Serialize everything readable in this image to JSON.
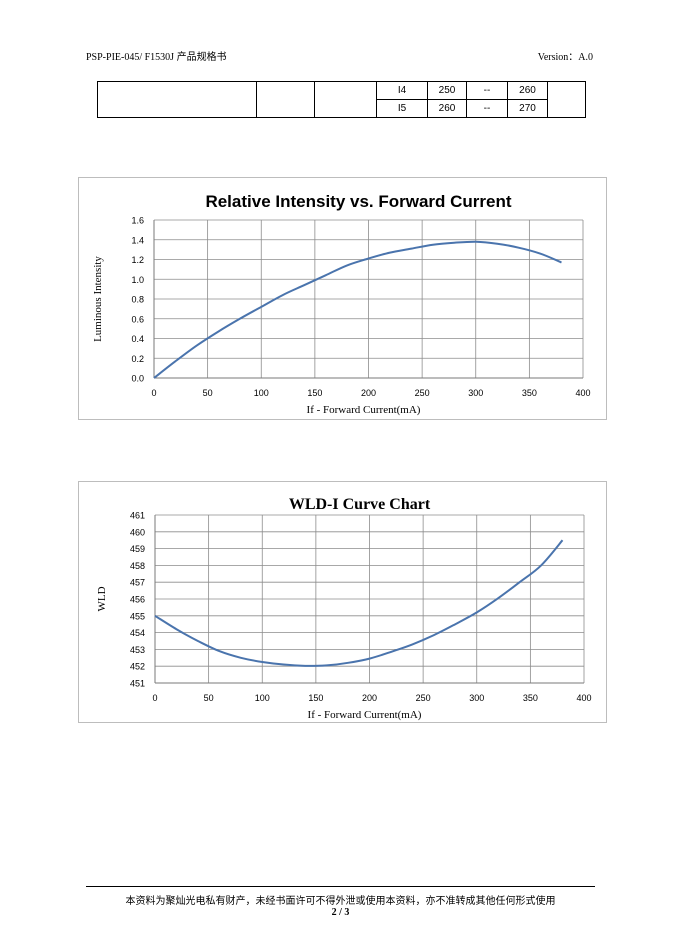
{
  "header": {
    "left": "PSP-PIE-045/ F1530J 产品规格书",
    "right": "Version：A.0"
  },
  "spec_table": {
    "rows": [
      {
        "code": "I4",
        "min": "250",
        "typ": "--",
        "max": "260"
      },
      {
        "code": "I5",
        "min": "260",
        "typ": "--",
        "max": "270"
      }
    ]
  },
  "chart_data": [
    {
      "type": "line",
      "title": "Relative Intensity vs. Forward Current",
      "xlabel": "If - Forward Current(mA)",
      "ylabel": "Luminous Intensity",
      "xlim": [
        0,
        400
      ],
      "ylim": [
        0,
        1.6
      ],
      "xticks": [
        "0",
        "50",
        "100",
        "150",
        "200",
        "250",
        "300",
        "350",
        "400"
      ],
      "yticks": [
        "0.0",
        "0.2",
        "0.4",
        "0.6",
        "0.8",
        "1.0",
        "1.2",
        "1.4",
        "1.6"
      ],
      "grid": true,
      "legend": "none",
      "color": "#4a74ad",
      "series": [
        {
          "x": [
            0,
            20,
            40,
            60,
            80,
            100,
            120,
            140,
            160,
            180,
            200,
            220,
            240,
            260,
            280,
            300,
            320,
            340,
            360,
            380
          ],
          "values": [
            0.0,
            0.17,
            0.33,
            0.47,
            0.6,
            0.72,
            0.84,
            0.94,
            1.04,
            1.14,
            1.21,
            1.27,
            1.31,
            1.35,
            1.37,
            1.38,
            1.36,
            1.32,
            1.26,
            1.17
          ]
        }
      ]
    },
    {
      "type": "line",
      "title": "WLD-I Curve Chart",
      "xlabel": "If - Forward Current(mA)",
      "ylabel": "WLD",
      "xlim": [
        0,
        400
      ],
      "ylim": [
        451,
        461
      ],
      "xticks": [
        "0",
        "50",
        "100",
        "150",
        "200",
        "250",
        "300",
        "350",
        "400"
      ],
      "yticks": [
        "451",
        "452",
        "453",
        "454",
        "455",
        "456",
        "457",
        "458",
        "459",
        "460",
        "461"
      ],
      "grid": true,
      "legend": "none",
      "color": "#4a74ad",
      "series": [
        {
          "x": [
            0,
            20,
            40,
            60,
            80,
            100,
            120,
            140,
            160,
            180,
            200,
            220,
            240,
            260,
            280,
            300,
            320,
            340,
            360,
            380
          ],
          "values": [
            455.0,
            454.2,
            453.5,
            452.9,
            452.5,
            452.25,
            452.1,
            452.02,
            452.05,
            452.2,
            452.45,
            452.85,
            453.3,
            453.85,
            454.5,
            455.2,
            456.05,
            457.0,
            458.0,
            459.5
          ]
        }
      ]
    }
  ],
  "footer": {
    "text": "本资料为聚灿光电私有财产，未经书面许可不得外泄或使用本资料，亦不准转成其他任何形式使用",
    "page": "2 / 3"
  }
}
